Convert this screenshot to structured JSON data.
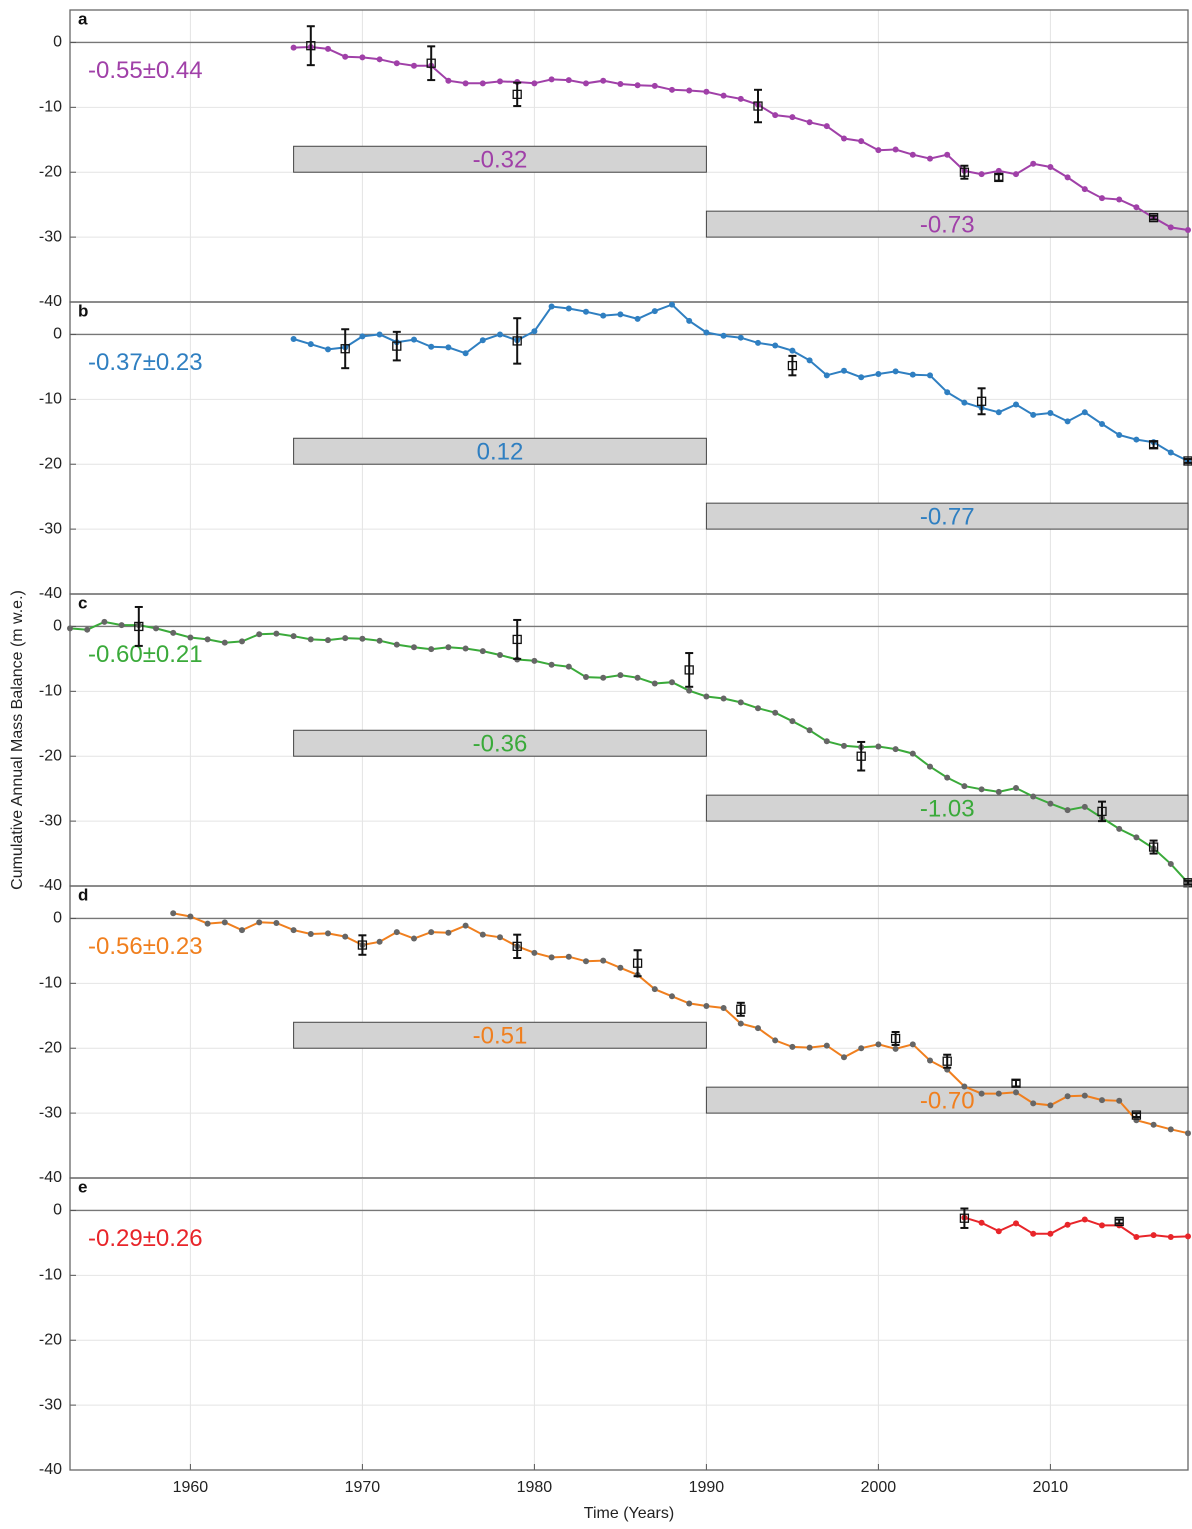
{
  "chart_data": [
    {
      "type": "line",
      "label": "a",
      "annotation": "-0.55±0.44",
      "color": "#a040a8",
      "marker_color": "#a040a8",
      "xlim": [
        1953,
        2018
      ],
      "ylim": [
        -40,
        5
      ],
      "xticks": [
        1960,
        1970,
        1980,
        1990,
        2000,
        2010
      ],
      "yticks": [
        0,
        -10,
        -20,
        -30,
        -40
      ],
      "grid": true,
      "x": [
        1966,
        1967,
        1968,
        1969,
        1970,
        1971,
        1972,
        1973,
        1974,
        1975,
        1976,
        1977,
        1978,
        1979,
        1980,
        1981,
        1982,
        1983,
        1984,
        1985,
        1986,
        1987,
        1988,
        1989,
        1990,
        1991,
        1992,
        1993,
        1994,
        1995,
        1996,
        1997,
        1998,
        1999,
        2000,
        2001,
        2002,
        2003,
        2004,
        2005,
        2006,
        2007,
        2008,
        2009,
        2010,
        2011,
        2012,
        2013,
        2014,
        2015,
        2016,
        2017,
        2018
      ],
      "values": [
        -0.8,
        -0.7,
        -1.0,
        -2.2,
        -2.3,
        -2.6,
        -3.2,
        -3.6,
        -3.6,
        -5.9,
        -6.3,
        -6.3,
        -6.0,
        -6.1,
        -6.3,
        -5.7,
        -5.8,
        -6.3,
        -5.9,
        -6.4,
        -6.6,
        -6.7,
        -7.3,
        -7.4,
        -7.6,
        -8.2,
        -8.7,
        -9.6,
        -11.2,
        -11.5,
        -12.3,
        -12.9,
        -14.8,
        -15.2,
        -16.6,
        -16.5,
        -17.3,
        -17.9,
        -17.3,
        -19.8,
        -20.3,
        -19.8,
        -20.3,
        -18.7,
        -19.2,
        -20.8,
        -22.6,
        -24.0,
        -24.2,
        -25.4,
        -27.0,
        -28.5,
        -28.9
      ],
      "observations": {
        "x": [
          1967,
          1974,
          1979,
          1993,
          2005,
          2007,
          2016
        ],
        "values": [
          -0.5,
          -3.2,
          -8.0,
          -9.8,
          -20.0,
          -20.8,
          -27.0
        ],
        "errors": [
          3.0,
          2.6,
          1.8,
          2.5,
          1.0,
          0.5,
          0.3
        ]
      },
      "periods": [
        {
          "x": [
            1966,
            1990
          ],
          "value": -0.32,
          "label": "-0.32"
        },
        {
          "x": [
            1990,
            2018
          ],
          "value": -0.73,
          "label": "-0.73"
        }
      ]
    },
    {
      "type": "line",
      "label": "b",
      "annotation": "-0.37±0.23",
      "color": "#2f7fc1",
      "marker_color": "#2f7fc1",
      "xlim": [
        1953,
        2018
      ],
      "ylim": [
        -40,
        5
      ],
      "xticks": [
        1960,
        1970,
        1980,
        1990,
        2000,
        2010
      ],
      "yticks": [
        0,
        -10,
        -20,
        -30,
        -40
      ],
      "grid": true,
      "x": [
        1966,
        1967,
        1968,
        1969,
        1970,
        1971,
        1972,
        1973,
        1974,
        1975,
        1976,
        1977,
        1978,
        1979,
        1980,
        1981,
        1982,
        1983,
        1984,
        1985,
        1986,
        1987,
        1988,
        1989,
        1990,
        1991,
        1992,
        1993,
        1994,
        1995,
        1996,
        1997,
        1998,
        1999,
        2000,
        2001,
        2002,
        2003,
        2004,
        2005,
        2006,
        2007,
        2008,
        2009,
        2010,
        2011,
        2012,
        2013,
        2014,
        2015,
        2016,
        2017,
        2018
      ],
      "values": [
        -0.7,
        -1.5,
        -2.3,
        -2.0,
        -0.3,
        0.0,
        -1.2,
        -0.8,
        -1.9,
        -2.0,
        -2.9,
        -0.9,
        0.0,
        -0.9,
        0.5,
        4.3,
        4.0,
        3.5,
        2.9,
        3.1,
        2.4,
        3.6,
        4.6,
        2.1,
        0.3,
        -0.2,
        -0.5,
        -1.3,
        -1.7,
        -2.5,
        -4.0,
        -6.3,
        -5.6,
        -6.6,
        -6.1,
        -5.7,
        -6.2,
        -6.3,
        -8.9,
        -10.5,
        -11.3,
        -12.0,
        -10.8,
        -12.4,
        -12.1,
        -13.4,
        -12.0,
        -13.8,
        -15.5,
        -16.2,
        -16.6,
        -18.2,
        -19.5
      ],
      "observations": {
        "x": [
          1969,
          1972,
          1979,
          1995,
          2006,
          2016,
          2018
        ],
        "values": [
          -2.2,
          -1.8,
          -1.0,
          -4.8,
          -10.3,
          -17.0,
          -19.5
        ],
        "errors": [
          3.0,
          2.2,
          3.5,
          1.5,
          2.0,
          0.5,
          0.3
        ]
      },
      "periods": [
        {
          "x": [
            1966,
            1990
          ],
          "value": 0.12,
          "label": "0.12"
        },
        {
          "x": [
            1990,
            2018
          ],
          "value": -0.77,
          "label": "-0.77"
        }
      ]
    },
    {
      "type": "line",
      "label": "c",
      "annotation": "-0.60±0.21",
      "color": "#3aaa3a",
      "marker_color": "#666666",
      "ylabel": "Cumulative Annual Mass Balance (m w.e.)",
      "xlim": [
        1953,
        2018
      ],
      "ylim": [
        -40,
        5
      ],
      "xticks": [
        1960,
        1970,
        1980,
        1990,
        2000,
        2010
      ],
      "yticks": [
        0,
        -10,
        -20,
        -30,
        -40
      ],
      "grid": true,
      "x": [
        1953,
        1954,
        1955,
        1956,
        1957,
        1958,
        1959,
        1960,
        1961,
        1962,
        1963,
        1964,
        1965,
        1966,
        1967,
        1968,
        1969,
        1970,
        1971,
        1972,
        1973,
        1974,
        1975,
        1976,
        1977,
        1978,
        1979,
        1980,
        1981,
        1982,
        1983,
        1984,
        1985,
        1986,
        1987,
        1988,
        1989,
        1990,
        1991,
        1992,
        1993,
        1994,
        1995,
        1996,
        1997,
        1998,
        1999,
        2000,
        2001,
        2002,
        2003,
        2004,
        2005,
        2006,
        2007,
        2008,
        2009,
        2010,
        2011,
        2012,
        2013,
        2014,
        2015,
        2016,
        2017,
        2018
      ],
      "values": [
        -0.3,
        -0.5,
        0.7,
        0.2,
        0.2,
        -0.3,
        -1.0,
        -1.7,
        -2.0,
        -2.5,
        -2.3,
        -1.2,
        -1.1,
        -1.5,
        -2.0,
        -2.1,
        -1.8,
        -1.9,
        -2.2,
        -2.8,
        -3.2,
        -3.5,
        -3.2,
        -3.4,
        -3.8,
        -4.4,
        -5.1,
        -5.3,
        -5.9,
        -6.2,
        -7.8,
        -7.9,
        -7.5,
        -7.9,
        -8.8,
        -8.6,
        -9.9,
        -10.8,
        -11.1,
        -11.7,
        -12.6,
        -13.3,
        -14.6,
        -16.0,
        -17.7,
        -18.4,
        -18.6,
        -18.5,
        -18.9,
        -19.6,
        -21.6,
        -23.3,
        -24.6,
        -25.1,
        -25.5,
        -24.9,
        -26.2,
        -27.3,
        -28.3,
        -27.8,
        -29.5,
        -31.2,
        -32.5,
        -34.2,
        -36.6,
        -39.5
      ],
      "observations": {
        "x": [
          1957,
          1979,
          1989,
          1999,
          2013,
          2016,
          2018
        ],
        "values": [
          0.0,
          -2.0,
          -6.7,
          -20.0,
          -28.5,
          -34.0,
          -39.5
        ],
        "errors": [
          3.0,
          3.0,
          2.6,
          2.2,
          1.5,
          1.0,
          0.3
        ]
      },
      "periods": [
        {
          "x": [
            1966,
            1990
          ],
          "value": -0.36,
          "label": "-0.36"
        },
        {
          "x": [
            1990,
            2018
          ],
          "value": -1.03,
          "label": "-1.03"
        }
      ]
    },
    {
      "type": "line",
      "label": "d",
      "annotation": "-0.56±0.23",
      "color": "#f07f1e",
      "marker_color": "#666666",
      "xlim": [
        1953,
        2018
      ],
      "ylim": [
        -40,
        5
      ],
      "xticks": [
        1960,
        1970,
        1980,
        1990,
        2000,
        2010
      ],
      "yticks": [
        0,
        -10,
        -20,
        -30,
        -40
      ],
      "grid": true,
      "x": [
        1959,
        1960,
        1961,
        1962,
        1963,
        1964,
        1965,
        1966,
        1967,
        1968,
        1969,
        1970,
        1971,
        1972,
        1973,
        1974,
        1975,
        1976,
        1977,
        1978,
        1979,
        1980,
        1981,
        1982,
        1983,
        1984,
        1985,
        1986,
        1987,
        1988,
        1989,
        1990,
        1991,
        1992,
        1993,
        1994,
        1995,
        1996,
        1997,
        1998,
        1999,
        2000,
        2001,
        2002,
        2003,
        2004,
        2005,
        2006,
        2007,
        2008,
        2009,
        2010,
        2011,
        2012,
        2013,
        2014,
        2015,
        2016,
        2017,
        2018
      ],
      "values": [
        0.8,
        0.3,
        -0.8,
        -0.6,
        -1.8,
        -0.6,
        -0.7,
        -1.8,
        -2.4,
        -2.3,
        -2.8,
        -4.1,
        -3.6,
        -2.1,
        -3.1,
        -2.1,
        -2.2,
        -1.1,
        -2.5,
        -2.9,
        -4.3,
        -5.3,
        -6.0,
        -5.9,
        -6.6,
        -6.5,
        -7.6,
        -8.7,
        -10.9,
        -12.0,
        -13.1,
        -13.5,
        -13.8,
        -16.2,
        -16.9,
        -18.8,
        -19.8,
        -19.9,
        -19.6,
        -21.4,
        -20.0,
        -19.4,
        -20.1,
        -19.4,
        -21.9,
        -23.3,
        -25.9,
        -27.0,
        -27.0,
        -26.8,
        -28.5,
        -28.8,
        -27.4,
        -27.3,
        -28.0,
        -28.1,
        -31.1,
        -31.8,
        -32.5,
        -33.1
      ],
      "observations": {
        "x": [
          1970,
          1979,
          1986,
          1992,
          2001,
          2004,
          2008,
          2015
        ],
        "values": [
          -4.1,
          -4.3,
          -6.9,
          -14.0,
          -18.5,
          -22.0,
          -25.4,
          -30.3
        ],
        "errors": [
          1.5,
          1.8,
          2.0,
          1.0,
          1.0,
          1.0,
          0.5,
          0.3
        ]
      },
      "periods": [
        {
          "x": [
            1966,
            1990
          ],
          "value": -0.51,
          "label": "-0.51"
        },
        {
          "x": [
            1990,
            2018
          ],
          "value": -0.7,
          "label": "-0.70"
        }
      ]
    },
    {
      "type": "line",
      "label": "e",
      "annotation": "-0.29±0.26",
      "color": "#e8252a",
      "marker_color": "#e8252a",
      "xlabel": "Time (Years)",
      "xlim": [
        1953,
        2018
      ],
      "ylim": [
        -40,
        5
      ],
      "xticks": [
        1960,
        1970,
        1980,
        1990,
        2000,
        2010
      ],
      "yticks": [
        0,
        -10,
        -20,
        -30,
        -40
      ],
      "grid": true,
      "x": [
        2005,
        2006,
        2007,
        2008,
        2009,
        2010,
        2011,
        2012,
        2013,
        2014,
        2015,
        2016,
        2017,
        2018
      ],
      "values": [
        -1.1,
        -1.9,
        -3.2,
        -2.0,
        -3.6,
        -3.6,
        -2.2,
        -1.4,
        -2.3,
        -2.3,
        -4.1,
        -3.8,
        -4.1,
        -4.0
      ],
      "observations": {
        "x": [
          2005,
          2014
        ],
        "values": [
          -1.2,
          -1.7
        ],
        "errors": [
          1.5,
          0.3
        ]
      },
      "periods": []
    }
  ]
}
